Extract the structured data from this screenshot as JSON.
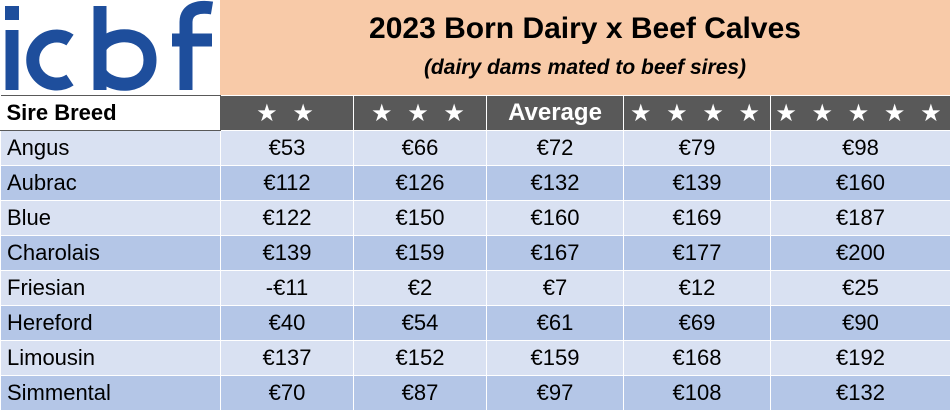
{
  "logo": {
    "text": "icbf",
    "color": "#1e4e9c"
  },
  "header": {
    "title": "2023 Born Dairy x Beef Calves",
    "subtitle": "(dairy dams mated to beef sires)",
    "background": "#f8caa8"
  },
  "table": {
    "columns": [
      "Sire Breed",
      "★ ★",
      "★ ★ ★",
      "Average",
      "★ ★ ★ ★",
      "★ ★ ★ ★ ★"
    ],
    "rows": [
      [
        "Angus",
        "€53",
        "€66",
        "€72",
        "€79",
        "€98"
      ],
      [
        "Aubrac",
        "€112",
        "€126",
        "€132",
        "€139",
        "€160"
      ],
      [
        "Blue",
        "€122",
        "€150",
        "€160",
        "€169",
        "€187"
      ],
      [
        "Charolais",
        "€139",
        "€159",
        "€167",
        "€177",
        "€200"
      ],
      [
        "Friesian",
        "-€11",
        "€2",
        "€7",
        "€12",
        "€25"
      ],
      [
        "Hereford",
        "€40",
        "€54",
        "€61",
        "€69",
        "€90"
      ],
      [
        "Limousin",
        "€137",
        "€152",
        "€159",
        "€168",
        "€192"
      ],
      [
        "Simmental",
        "€70",
        "€87",
        "€97",
        "€108",
        "€132"
      ]
    ],
    "header_color": "#595959",
    "row_colors": [
      "#d9e1f2",
      "#b4c6e7"
    ]
  }
}
